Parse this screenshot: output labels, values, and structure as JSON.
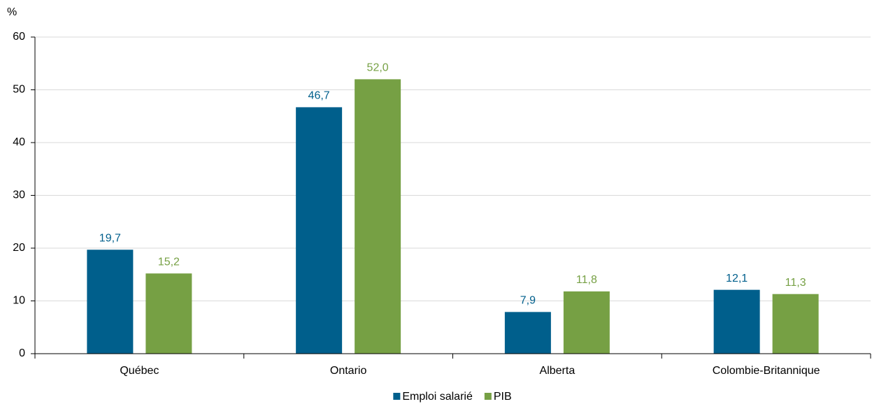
{
  "chart_data": {
    "type": "bar",
    "y_label": "%",
    "categories": [
      "Québec",
      "Ontario",
      "Alberta",
      "Colombie-Britannique"
    ],
    "series": [
      {
        "name": "Emploi salarié",
        "color": "#005f8c",
        "values": [
          19.7,
          46.7,
          7.9,
          12.1
        ],
        "value_labels": [
          "19,7",
          "46,7",
          "7,9",
          "12,1"
        ]
      },
      {
        "name": "PIB",
        "color": "#76a044",
        "values": [
          15.2,
          52.0,
          11.8,
          11.3
        ],
        "value_labels": [
          "15,2",
          "52,0",
          "11,8",
          "11,3"
        ]
      }
    ],
    "ylim": [
      0,
      60
    ],
    "yticks": [
      0,
      10,
      20,
      30,
      40,
      50,
      60
    ],
    "grid": true,
    "legend": "bottom"
  }
}
